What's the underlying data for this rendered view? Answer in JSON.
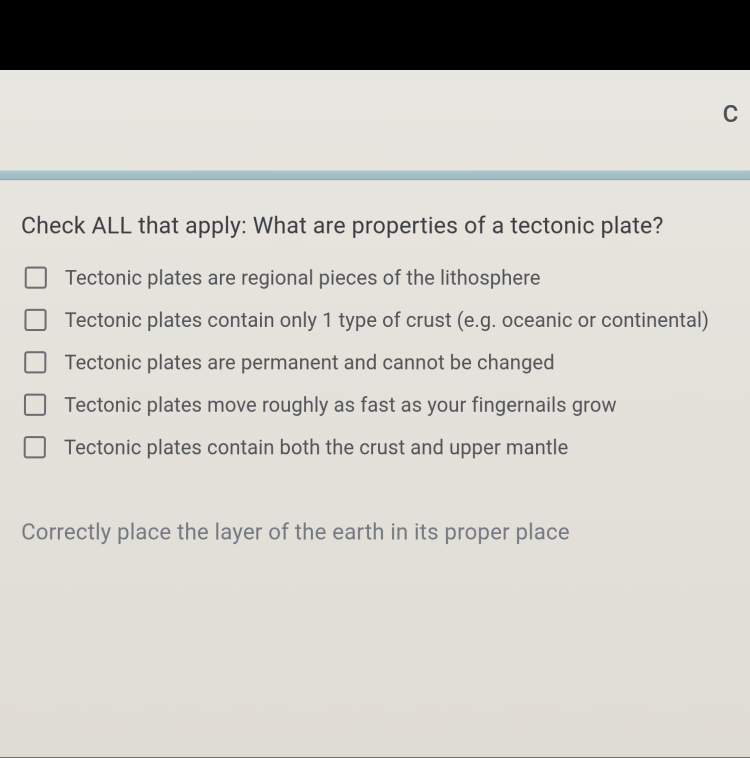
{
  "header": {
    "corner_letter": "C"
  },
  "question": {
    "title": "Check ALL that apply: What are properties of a tectonic plate?",
    "options": [
      {
        "label": "Tectonic plates are regional pieces of the lithosphere",
        "checked": false
      },
      {
        "label": "Tectonic plates contain only 1 type of crust (e.g. oceanic or continental)",
        "checked": false
      },
      {
        "label": "Tectonic plates are permanent and cannot be changed",
        "checked": false
      },
      {
        "label": "Tectonic plates move roughly as fast as your fingernails grow",
        "checked": false
      },
      {
        "label": "Tectonic plates contain both the crust and upper mantle",
        "checked": false
      }
    ]
  },
  "next_question": {
    "text": "Correctly place the layer of the earth in its proper place"
  },
  "styling": {
    "background_top": "#000000",
    "screen_bg_start": "#e8e6e0",
    "screen_bg_end": "#dfdcd4",
    "separator_color": "#a8c4cc",
    "text_primary": "#3a3d42",
    "text_secondary": "#505358",
    "text_muted": "#747880",
    "checkbox_border": "#6a6d72",
    "title_fontsize": 23,
    "option_fontsize": 20,
    "next_fontsize": 22
  }
}
